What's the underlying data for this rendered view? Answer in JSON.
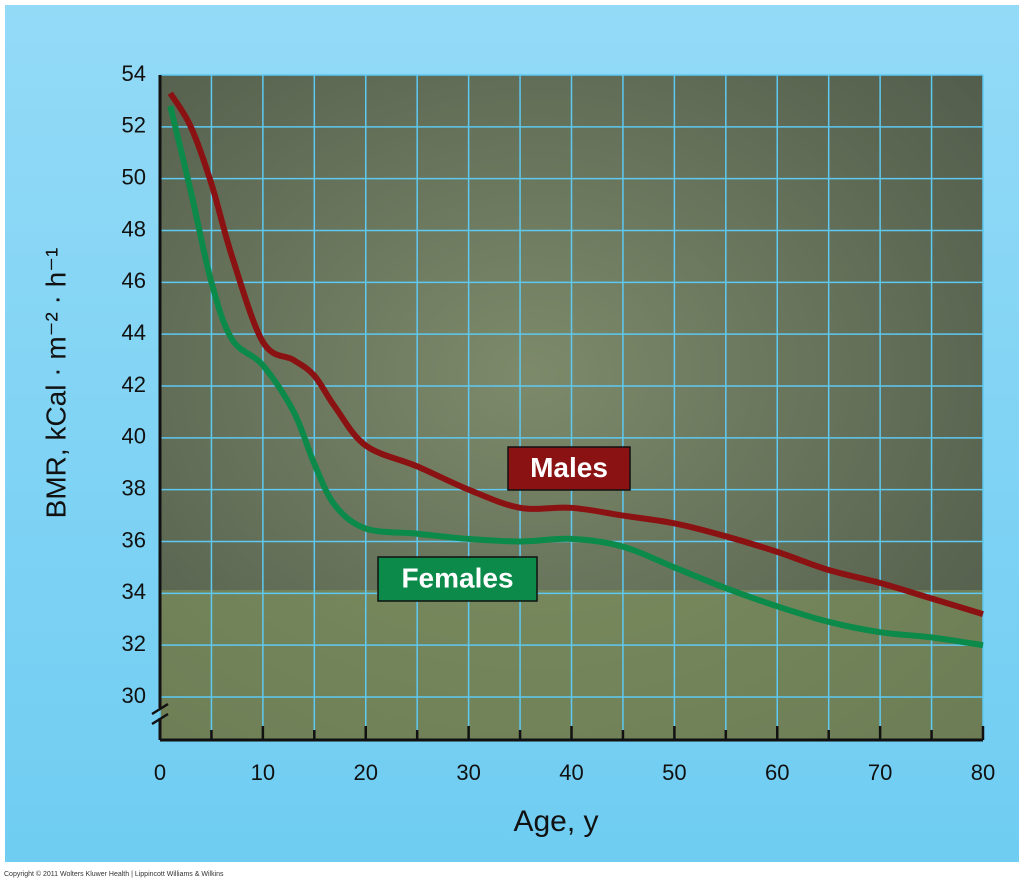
{
  "chart_data": {
    "type": "line",
    "ylabel": "BMR, kCal · m⁻² · h⁻¹",
    "xlabel": "Age, y",
    "footer": "Copyright © 2011 Wolters Kluwer Health | Lippincott Williams & Wilkins",
    "x": [
      1,
      3,
      5,
      7,
      10,
      13,
      15,
      17,
      20,
      25,
      30,
      35,
      40,
      45,
      50,
      55,
      60,
      65,
      70,
      75,
      80
    ],
    "series": [
      {
        "name": "Males",
        "color": "#8b1212",
        "values": [
          53.3,
          52.0,
          49.8,
          47.0,
          43.7,
          43.0,
          42.4,
          41.2,
          39.7,
          38.9,
          38.0,
          37.3,
          37.3,
          37.0,
          36.7,
          36.2,
          35.6,
          34.9,
          34.4,
          33.8,
          33.2
        ]
      },
      {
        "name": "Females",
        "color": "#0b8a4a",
        "values": [
          52.8,
          49.5,
          46.0,
          43.8,
          42.8,
          41.0,
          39.0,
          37.4,
          36.5,
          36.3,
          36.1,
          36.0,
          36.1,
          35.8,
          35.0,
          34.2,
          33.5,
          32.9,
          32.5,
          32.3,
          32.0
        ]
      }
    ],
    "xlim": [
      0,
      80
    ],
    "xticks": [
      0,
      10,
      20,
      30,
      40,
      50,
      60,
      70,
      80
    ],
    "x_minor_ticks": [
      5,
      15,
      25,
      35,
      45,
      55,
      65,
      75
    ],
    "ylim": [
      30,
      54
    ],
    "yticks": [
      30,
      32,
      34,
      36,
      38,
      40,
      42,
      44,
      46,
      48,
      50,
      52,
      54
    ],
    "grid": true
  }
}
